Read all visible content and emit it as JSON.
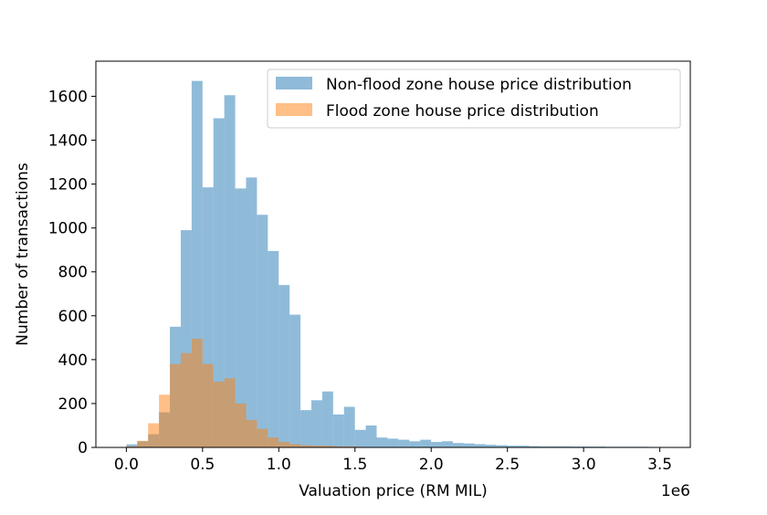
{
  "chart_data": {
    "type": "histogram",
    "xlabel": "Valuation price (RM MIL)",
    "ylabel": "Number of transactions",
    "x_offset_label": "1e6",
    "xlim": [
      -0.2,
      3.7
    ],
    "ylim": [
      0,
      1760
    ],
    "x_ticks": [
      0.0,
      0.5,
      1.0,
      1.5,
      2.0,
      2.5,
      3.0,
      3.5
    ],
    "x_tick_labels": [
      "0.0",
      "0.5",
      "1.0",
      "1.5",
      "2.0",
      "2.5",
      "3.0",
      "3.5"
    ],
    "y_ticks": [
      0,
      200,
      400,
      600,
      800,
      1000,
      1200,
      1400,
      1600
    ],
    "y_tick_labels": [
      "0",
      "200",
      "400",
      "600",
      "800",
      "1000",
      "1200",
      "1400",
      "1600"
    ],
    "grid": false,
    "legend_position": "upper-right",
    "series": [
      {
        "name": "Non-flood zone house price distribution",
        "color": "#1f77b4",
        "alpha": 0.5,
        "bin_start": 0.0,
        "bin_width": 0.0714,
        "values": [
          14,
          28,
          60,
          160,
          550,
          990,
          1670,
          1185,
          1500,
          1605,
          1180,
          1230,
          1060,
          895,
          740,
          605,
          170,
          215,
          255,
          150,
          185,
          80,
          100,
          45,
          40,
          35,
          28,
          35,
          25,
          28,
          20,
          18,
          15,
          12,
          10,
          8,
          8,
          6,
          5,
          5,
          5,
          4,
          4,
          4,
          3,
          3,
          3,
          3,
          2,
          2
        ]
      },
      {
        "name": "Flood zone house price distribution",
        "color": "#ff7f0e",
        "alpha": 0.5,
        "bin_start": 0.0,
        "bin_width": 0.0714,
        "values": [
          5,
          30,
          110,
          240,
          380,
          430,
          495,
          380,
          300,
          315,
          200,
          125,
          85,
          45,
          25,
          15,
          10,
          8,
          8,
          5,
          4,
          3,
          2,
          2,
          1,
          1,
          1,
          1,
          1,
          1
        ]
      }
    ]
  }
}
